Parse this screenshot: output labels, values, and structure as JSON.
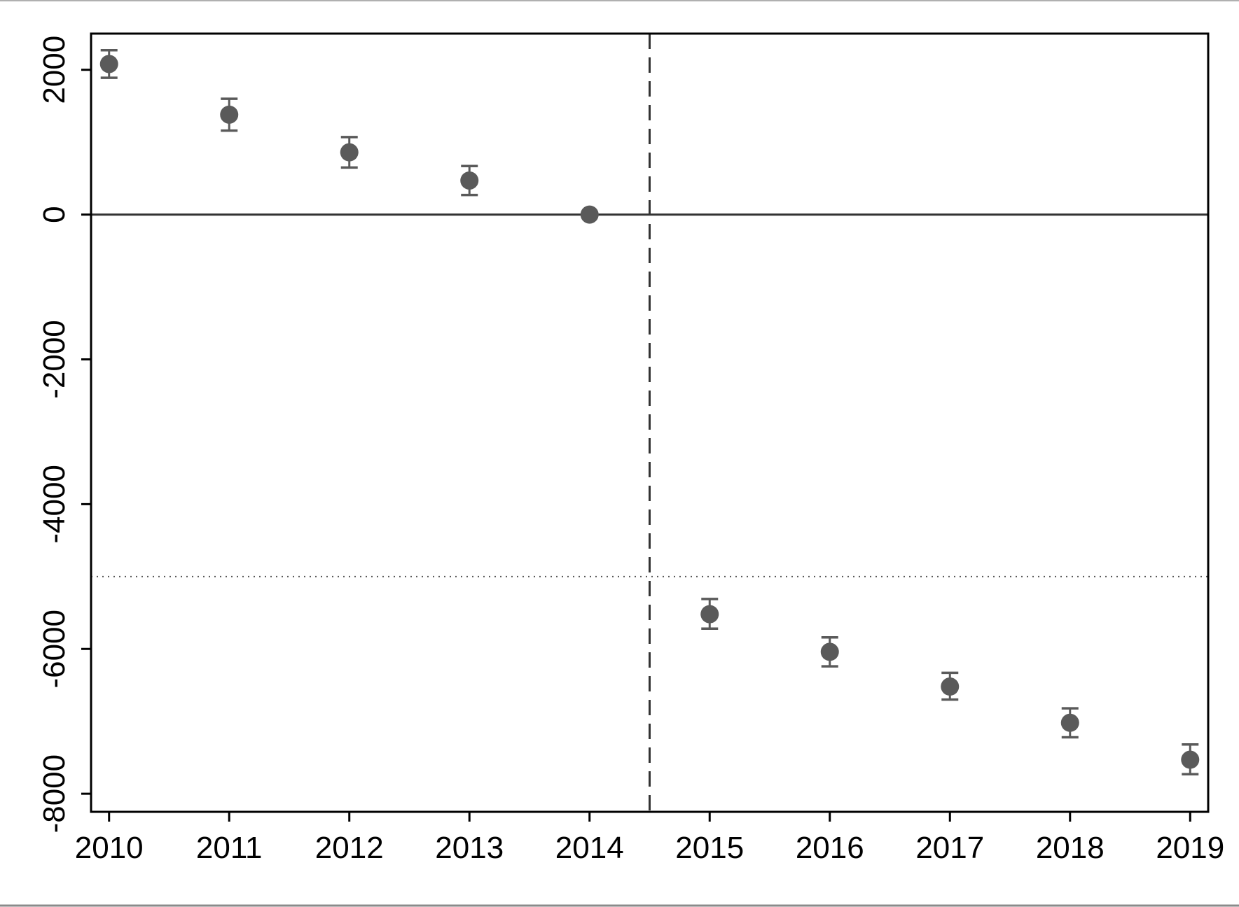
{
  "chart_data": {
    "type": "scatter",
    "title": "",
    "xlabel": "",
    "ylabel": "",
    "x": [
      2010,
      2011,
      2012,
      2013,
      2014,
      2015,
      2016,
      2017,
      2018,
      2019
    ],
    "series": [
      {
        "values": [
          2080,
          1380,
          860,
          470,
          0,
          -5520,
          -6040,
          -6520,
          -7020,
          -7530
        ],
        "ci_lower": [
          1890,
          1160,
          650,
          270,
          0,
          -5720,
          -6240,
          -6700,
          -7220,
          -7730
        ],
        "ci_upper": [
          2270,
          1600,
          1070,
          670,
          0,
          -5310,
          -5840,
          -6330,
          -6820,
          -7320
        ]
      }
    ],
    "xticks": [
      "2010",
      "2011",
      "2012",
      "2013",
      "2014",
      "2015",
      "2016",
      "2017",
      "2018",
      "2019"
    ],
    "yticks": [
      "-8000",
      "-6000",
      "-4000",
      "-2000",
      "0",
      "2000"
    ],
    "ytick_values": [
      -8000,
      -6000,
      -4000,
      -2000,
      0,
      2000
    ],
    "xlim": [
      2009.85,
      2019.15
    ],
    "ylim": [
      -8250,
      2500
    ],
    "reference_lines": {
      "horizontal_solid": 0,
      "horizontal_dotted": -5000,
      "vertical_dashed": 2014.5
    },
    "grid": false,
    "colors": {
      "marker": "#5a5a5a",
      "axis": "#000000",
      "reference": "#333333"
    }
  }
}
